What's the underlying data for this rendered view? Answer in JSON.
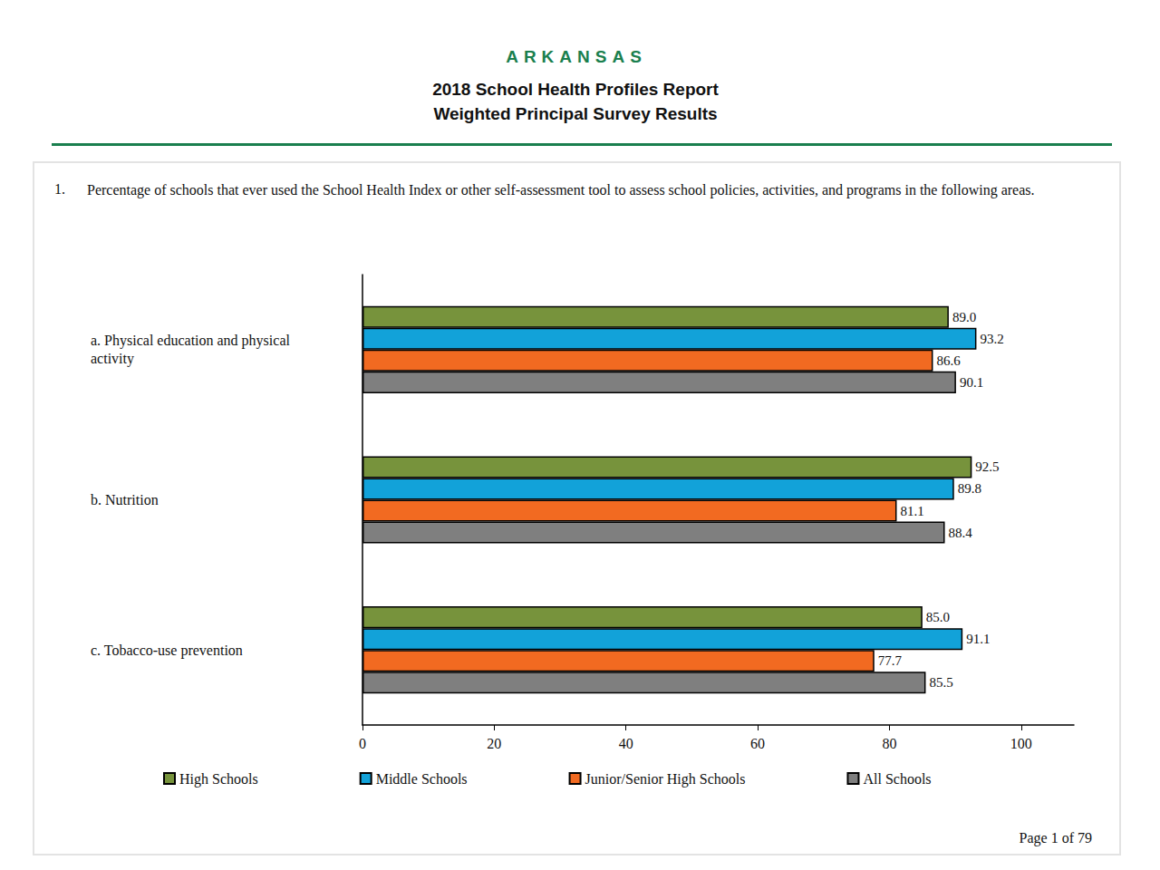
{
  "header": {
    "state": "ARKANSAS",
    "title": "2018 School Health Profiles Report",
    "subtitle": "Weighted Principal Survey Results"
  },
  "question": {
    "number": "1.",
    "text": "Percentage of schools that ever used the School Health Index or other self-assessment tool to assess school policies, activities, and programs in the following areas."
  },
  "footer": "Page 1 of 79",
  "chart_data": {
    "type": "bar",
    "orientation": "horizontal",
    "categories": [
      "a. Physical education and physical activity",
      "b. Nutrition",
      "c. Tobacco-use prevention"
    ],
    "series": [
      {
        "name": "High Schools",
        "color": "#77933c",
        "values": [
          89.0,
          92.5,
          85.0
        ],
        "value_labels": [
          "89.0",
          "92.5",
          "85.0"
        ]
      },
      {
        "name": "Middle Schools",
        "color": "#12a2d9",
        "values": [
          93.2,
          89.8,
          91.1
        ],
        "value_labels": [
          "93.2",
          "89.8",
          "91.1"
        ]
      },
      {
        "name": "Junior/Senior High Schools",
        "color": "#f26a21",
        "values": [
          86.6,
          81.1,
          77.7
        ],
        "value_labels": [
          "86.6",
          "81.1",
          "77.7"
        ]
      },
      {
        "name": "All Schools",
        "color": "#7f7f7f",
        "values": [
          90.1,
          88.4,
          85.5
        ],
        "value_labels": [
          "90.1",
          "88.4",
          "85.5"
        ]
      }
    ],
    "xlim": [
      0,
      108
    ],
    "xticks": [
      0,
      20,
      40,
      60,
      80,
      100
    ],
    "grid": false,
    "data_labels": true,
    "legend": "bottom"
  }
}
